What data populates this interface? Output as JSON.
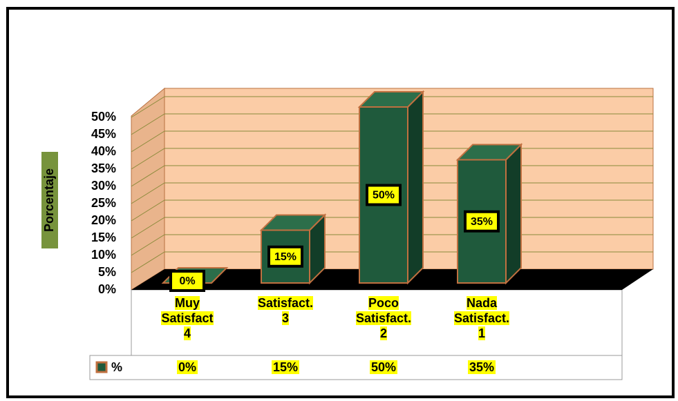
{
  "chart_data": {
    "type": "bar3d",
    "y_label": "Porcentaje",
    "categories": [
      "Muy\nSatisfact\n4",
      "Satisfact.\n3",
      "Poco\nSatisfact.\n2",
      "Nada\nSatisfact.\n1"
    ],
    "series": [
      {
        "name": "%",
        "color": "#1f5a3c",
        "values": [
          0,
          15,
          50,
          35
        ],
        "value_labels": [
          "0%",
          "15%",
          "50%",
          "35%"
        ]
      }
    ],
    "ylim": [
      0,
      50
    ],
    "yticks": [
      {
        "value": 0,
        "label": "0%"
      },
      {
        "value": 5,
        "label": "5%"
      },
      {
        "value": 10,
        "label": "10%"
      },
      {
        "value": 15,
        "label": "15%"
      },
      {
        "value": 20,
        "label": "20%"
      },
      {
        "value": 25,
        "label": "25%"
      },
      {
        "value": 30,
        "label": "30%"
      },
      {
        "value": 35,
        "label": "35%"
      },
      {
        "value": 40,
        "label": "40%"
      },
      {
        "value": 45,
        "label": "45%"
      },
      {
        "value": 50,
        "label": "50%"
      }
    ],
    "grid": true
  }
}
